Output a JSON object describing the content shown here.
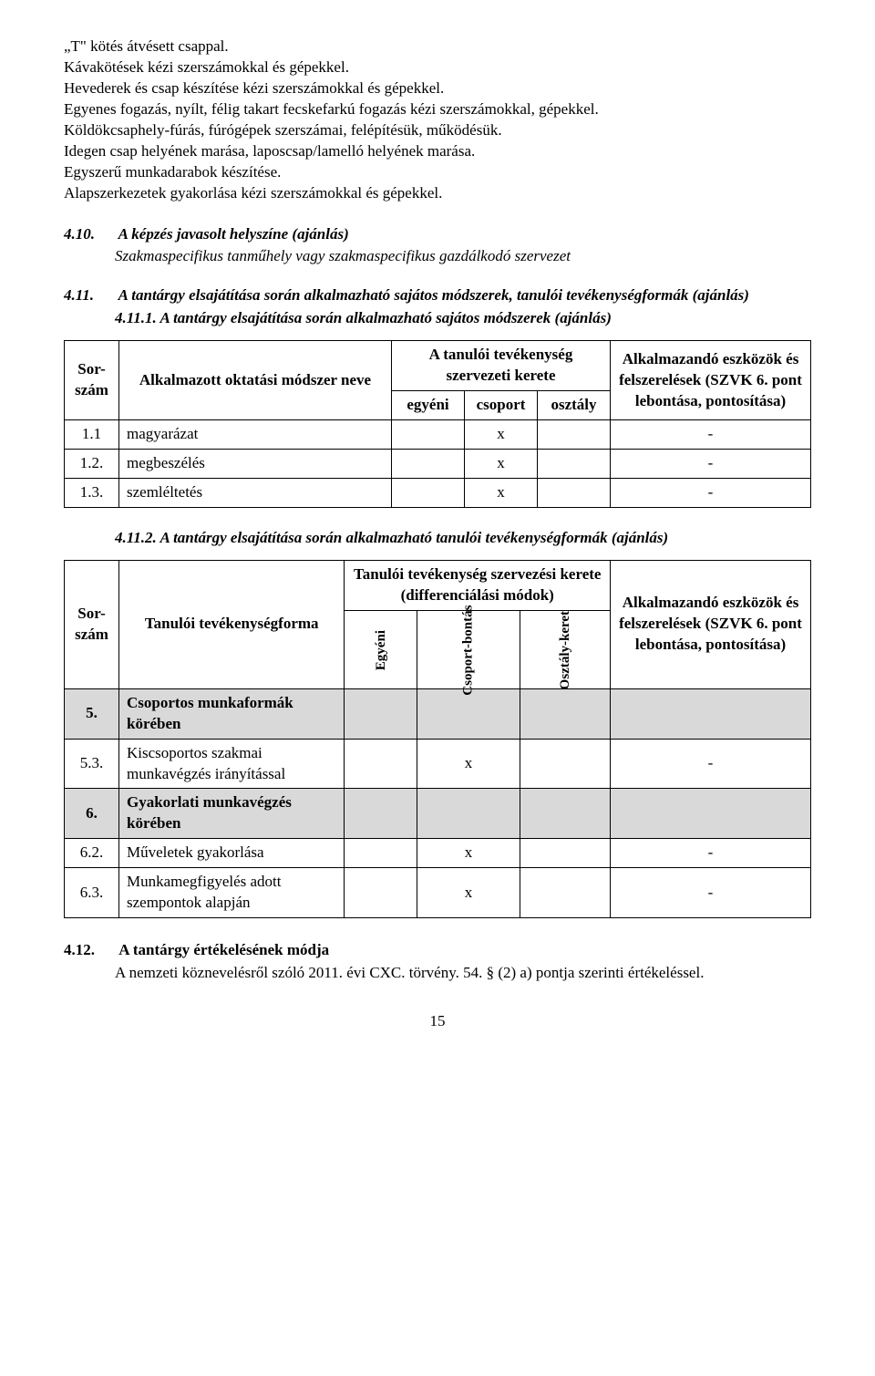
{
  "intro": {
    "p1": "„T\" kötés átvésett csappal.",
    "p2": "Kávakötések kézi szerszámokkal és gépekkel.",
    "p3": "Hevederek és csap készítése kézi szerszámokkal és gépekkel.",
    "p4": "Egyenes fogazás, nyílt, félig takart fecskefarkú fogazás kézi szerszámokkal, gépekkel.",
    "p5": "Köldökcsaphely-fúrás, fúrógépek szerszámai, felépítésük, működésük.",
    "p6": "Idegen csap helyének marása, laposcsap/lamelló helyének marása.",
    "p7": "Egyszerű munkadarabok készítése.",
    "p8": "Alapszerkezetek gyakorlása kézi szerszámokkal és gépekkel."
  },
  "s410": {
    "num": "4.10.",
    "title": "A képzés javasolt helyszíne (ajánlás)",
    "body": "Szakmaspecifikus tanműhely vagy szakmaspecifikus gazdálkodó szervezet"
  },
  "s411": {
    "num": "4.11.",
    "title": "A tantárgy elsajátítása során alkalmazható sajátos módszerek, tanulói tevékenységformák (ajánlás)"
  },
  "s4111": {
    "num": "4.11.1.",
    "title": "A tantárgy elsajátítása során alkalmazható sajátos módszerek (ajánlás)"
  },
  "table1": {
    "headers": {
      "sor": "Sor-szám",
      "method": "Alkalmazott oktatási módszer neve",
      "group_header": "A tanulói tevékenység szervezeti kerete",
      "egyeni": "egyéni",
      "csoport": "csoport",
      "osztaly": "osztály",
      "alk": "Alkalmazandó eszközök és felszerelések (SZVK 6. pont lebontása, pontosítása)"
    },
    "rows": [
      {
        "num": "1.1",
        "name": "magyarázat",
        "egyeni": "",
        "csoport": "x",
        "osztaly": "",
        "alk": "-"
      },
      {
        "num": "1.2.",
        "name": "megbeszélés",
        "egyeni": "",
        "csoport": "x",
        "osztaly": "",
        "alk": "-"
      },
      {
        "num": "1.3.",
        "name": "szemléltetés",
        "egyeni": "",
        "csoport": "x",
        "osztaly": "",
        "alk": "-"
      }
    ]
  },
  "s4112": {
    "num": "4.11.2.",
    "title": "A tantárgy elsajátítása során alkalmazható tanulói tevékenységformák (ajánlás)"
  },
  "table2": {
    "headers": {
      "sor": "Sor-szám",
      "form": "Tanulói tevékenységforma",
      "group_header": "Tanulói tevékenység szervezési kerete (differenciálási módok)",
      "egyeni": "Egyéni",
      "csoport": "Csoport-bontás",
      "osztaly": "Osztály-keret",
      "alk": "Alkalmazandó eszközök és felszerelések (SZVK 6. pont lebontása, pontosítása)"
    },
    "rows": [
      {
        "num": "5.",
        "name": "Csoportos munkaformák körében",
        "egyeni": "",
        "csoport": "",
        "osztaly": "",
        "alk": "",
        "shaded": true,
        "bold": true
      },
      {
        "num": "5.3.",
        "name": "Kiscsoportos szakmai munkavégzés irányítással",
        "egyeni": "",
        "csoport": "x",
        "osztaly": "",
        "alk": "-"
      },
      {
        "num": "6.",
        "name": "Gyakorlati munkavégzés körében",
        "egyeni": "",
        "csoport": "",
        "osztaly": "",
        "alk": "",
        "shaded": true,
        "bold": true
      },
      {
        "num": "6.2.",
        "name": "Műveletek gyakorlása",
        "egyeni": "",
        "csoport": "x",
        "osztaly": "",
        "alk": "-"
      },
      {
        "num": "6.3.",
        "name": "Munkamegfigyelés adott szempontok alapján",
        "egyeni": "",
        "csoport": "x",
        "osztaly": "",
        "alk": "-"
      }
    ]
  },
  "s412": {
    "num": "4.12.",
    "title": "A tantárgy értékelésének módja",
    "body": "A nemzeti köznevelésről szóló 2011. évi CXC. törvény. 54. § (2) a) pontja szerinti értékeléssel."
  },
  "page_number": "15"
}
